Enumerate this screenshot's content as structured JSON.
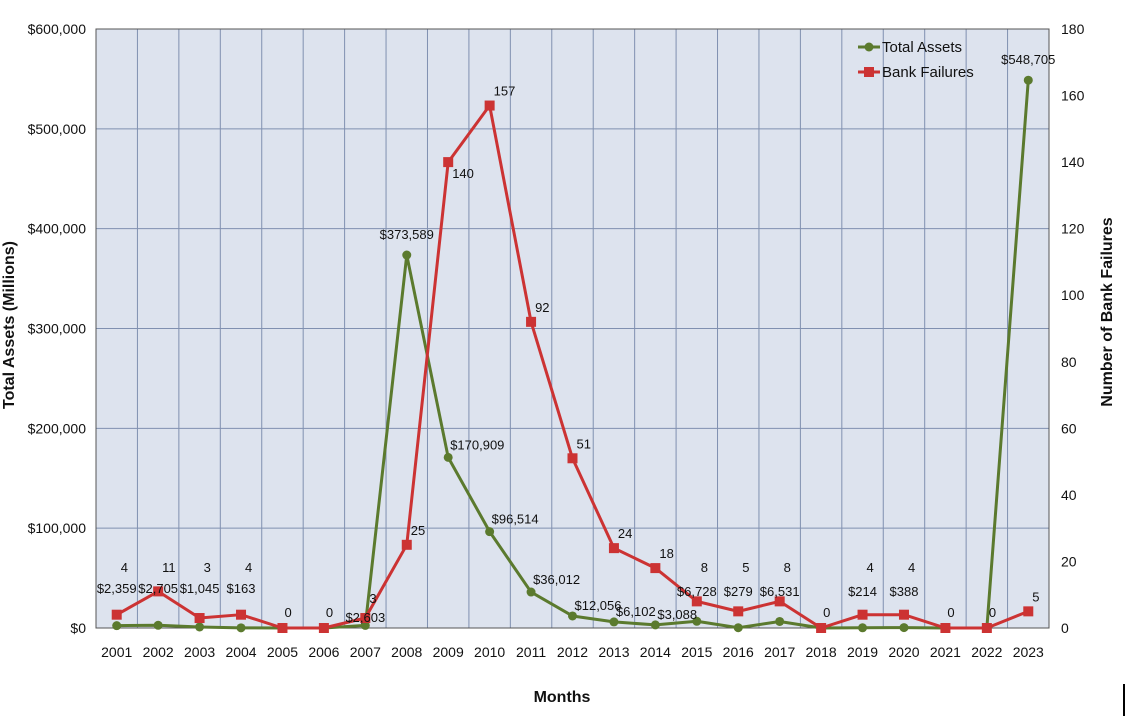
{
  "chart_data": {
    "type": "line",
    "title": "",
    "xlabel": "Months",
    "ylabel": "Total Assets (Millions)",
    "y2label": "Number of Bank Failures",
    "x": [
      "2001",
      "2002",
      "2003",
      "2004",
      "2005",
      "2006",
      "2007",
      "2008",
      "2009",
      "2010",
      "2011",
      "2012",
      "2013",
      "2014",
      "2015",
      "2016",
      "2017",
      "2018",
      "2019",
      "2020",
      "2021",
      "2022",
      "2023"
    ],
    "ylim": [
      0,
      600000
    ],
    "y2lim": [
      0,
      180
    ],
    "yticks": [
      "$0",
      "$100,000",
      "$200,000",
      "$300,000",
      "$400,000",
      "$500,000",
      "$600,000"
    ],
    "y2ticks": [
      "0",
      "20",
      "40",
      "60",
      "80",
      "100",
      "120",
      "140",
      "160",
      "180"
    ],
    "grid": true,
    "legend_position": "top-right",
    "series": [
      {
        "name": "Total Assets",
        "axis": "left",
        "color": "#5b7a2e",
        "marker": "circle",
        "values": [
          2359,
          2705,
          1045,
          163,
          0,
          0,
          2603,
          373589,
          170909,
          96514,
          36012,
          12056,
          6102,
          3088,
          6728,
          279,
          6531,
          0,
          214,
          388,
          0,
          0,
          548705
        ],
        "labels": [
          "$2,359",
          "$2,705",
          "$1,045",
          "$163",
          "",
          "",
          "$2,603",
          "$373,589",
          "$170,909",
          "$96,514",
          "$36,012",
          "$12,056",
          "$6,102",
          "$3,088",
          "$6,728",
          "$279",
          "$6,531",
          "",
          "$214",
          "$388",
          "",
          "",
          "$548,705"
        ]
      },
      {
        "name": "Bank Failures",
        "axis": "right",
        "color": "#cc3333",
        "marker": "square",
        "values": [
          4,
          11,
          3,
          4,
          0,
          0,
          3,
          25,
          140,
          157,
          92,
          51,
          24,
          18,
          8,
          5,
          8,
          0,
          4,
          4,
          0,
          0,
          5
        ],
        "labels": [
          "4",
          "11",
          "3",
          "4",
          "0",
          "0",
          "3",
          "25",
          "140",
          "157",
          "92",
          "51",
          "24",
          "18",
          "8",
          "5",
          "8",
          "0",
          "4",
          "4",
          "0",
          "0",
          "5"
        ]
      }
    ]
  },
  "colors": {
    "plot_bg": "#dde3ee",
    "grid": "#8090b0",
    "assets": "#5b7a2e",
    "failures": "#cc3333"
  }
}
